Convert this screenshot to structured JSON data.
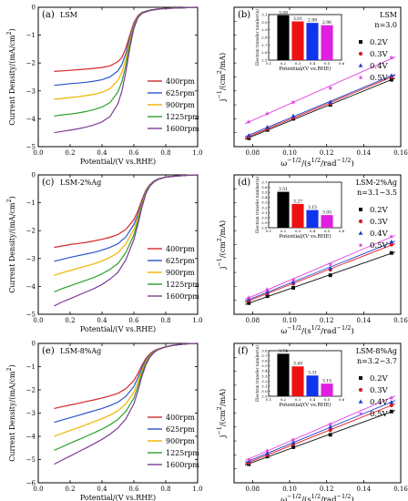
{
  "figure": {
    "title": ""
  },
  "chart_data": [
    {
      "panel": "(a)",
      "type": "line",
      "name": "LSM",
      "xlabel": "Potential/(V vs.RHE)",
      "ylabel": "Current Density/(mA/cm²)",
      "xlim": [
        0.0,
        1.0
      ],
      "ylim": [
        -5,
        0
      ],
      "xticks": [
        "0.0",
        "0.2",
        "0.4",
        "0.6",
        "0.8",
        "1.0"
      ],
      "yticks": [
        "0",
        "-1",
        "-2",
        "-3",
        "-4",
        "-5"
      ],
      "legend": "bottom-right",
      "x": [
        0.1,
        0.15,
        0.2,
        0.25,
        0.3,
        0.35,
        0.4,
        0.45,
        0.5,
        0.525,
        0.55,
        0.575,
        0.6,
        0.625,
        0.65,
        0.7,
        0.75,
        0.8,
        0.85,
        0.9,
        0.95,
        1.0
      ],
      "series": [
        {
          "name": "400rpm",
          "color": "#d62728",
          "values": [
            -2.3,
            -2.28,
            -2.26,
            -2.24,
            -2.22,
            -2.19,
            -2.16,
            -2.1,
            -1.95,
            -1.8,
            -1.45,
            -1.0,
            -0.55,
            -0.3,
            -0.18,
            -0.1,
            -0.06,
            -0.04,
            -0.03,
            -0.02,
            -0.01,
            0
          ]
        },
        {
          "name": "625rpm",
          "color": "#2a55c8",
          "values": [
            -2.8,
            -2.77,
            -2.74,
            -2.72,
            -2.69,
            -2.65,
            -2.6,
            -2.5,
            -2.28,
            -2.05,
            -1.65,
            -1.1,
            -0.6,
            -0.32,
            -0.19,
            -0.1,
            -0.06,
            -0.04,
            -0.03,
            -0.02,
            -0.01,
            0
          ]
        },
        {
          "name": "900rpm",
          "color": "#f0b400",
          "values": [
            -3.3,
            -3.27,
            -3.24,
            -3.21,
            -3.17,
            -3.12,
            -3.05,
            -2.92,
            -2.62,
            -2.32,
            -1.85,
            -1.2,
            -0.65,
            -0.34,
            -0.2,
            -0.11,
            -0.07,
            -0.04,
            -0.03,
            -0.02,
            -0.01,
            0
          ]
        },
        {
          "name": "1225rpm",
          "color": "#2ca02c",
          "values": [
            -3.9,
            -3.86,
            -3.83,
            -3.79,
            -3.74,
            -3.67,
            -3.58,
            -3.42,
            -3.04,
            -2.66,
            -2.07,
            -1.32,
            -0.7,
            -0.36,
            -0.21,
            -0.11,
            -0.07,
            -0.04,
            -0.03,
            -0.02,
            -0.01,
            0
          ]
        },
        {
          "name": "1600rpm",
          "color": "#7e3c98",
          "values": [
            -4.5,
            -4.45,
            -4.41,
            -4.36,
            -4.3,
            -4.22,
            -4.11,
            -3.92,
            -3.46,
            -3.0,
            -2.3,
            -1.45,
            -0.76,
            -0.38,
            -0.22,
            -0.12,
            -0.07,
            -0.04,
            -0.03,
            -0.02,
            -0.01,
            0
          ]
        }
      ]
    },
    {
      "panel": "(b)",
      "type": "scatter",
      "name": "LSM",
      "n_label": "n=3.0",
      "xlabel": "ω^-1/2/(s^1/2/rad^-1/2)",
      "ylabel": "j^-1/(cm²/mA)",
      "xlim": [
        0.07,
        0.16
      ],
      "ylim": [
        0.2,
        0.7
      ],
      "xticks": [
        "0.08",
        "0.10",
        "0.12",
        "0.14",
        "0.16"
      ],
      "legend": "center-right",
      "x": [
        0.078,
        0.088,
        0.102,
        0.122,
        0.155
      ],
      "series": [
        {
          "name": "0.2V",
          "color": "#111111",
          "marker": "square",
          "values": [
            0.23,
            0.26,
            0.3,
            0.35,
            0.44
          ]
        },
        {
          "name": "0.3V",
          "color": "#e41a1c",
          "marker": "circle",
          "values": [
            0.235,
            0.265,
            0.305,
            0.355,
            0.45
          ]
        },
        {
          "name": "0.4V",
          "color": "#2040d0",
          "marker": "triangle",
          "values": [
            0.24,
            0.27,
            0.31,
            0.36,
            0.455
          ]
        },
        {
          "name": "0.5V",
          "color": "#e040e0",
          "marker": "star",
          "values": [
            0.29,
            0.32,
            0.36,
            0.41,
            0.52
          ]
        }
      ],
      "inset": {
        "ylabel": "Electron transfer number(n)",
        "xlabel": "Potential/(V vs.RHE)",
        "ylim": [
          2.5,
          3.1
        ],
        "yticks": [
          "3.1",
          "3.0",
          "2.9",
          "2.8",
          "2.7",
          "2.6",
          "2.5"
        ],
        "xticks": [
          "0.1",
          "0.2",
          "0.3",
          "0.4",
          "0.5",
          "0.6"
        ],
        "bars": [
          {
            "x": 0.2,
            "value": 3.09,
            "label": "3.09",
            "color": "#000000"
          },
          {
            "x": 0.3,
            "value": 3.01,
            "label": "3.01",
            "color": "#ee1111"
          },
          {
            "x": 0.4,
            "value": 2.99,
            "label": "2.99",
            "color": "#1133ee"
          },
          {
            "x": 0.5,
            "value": 2.96,
            "label": "2.96",
            "color": "#e020e0"
          }
        ]
      }
    },
    {
      "panel": "(c)",
      "type": "line",
      "name": "LSM-2%Ag",
      "xlabel": "Potential/(V vs.RHE)",
      "ylabel": "Current Density/(mA/cm²)",
      "xlim": [
        0.0,
        1.0
      ],
      "ylim": [
        -5,
        0
      ],
      "xticks": [
        "0.0",
        "0.2",
        "0.4",
        "0.6",
        "0.8",
        "1.0"
      ],
      "yticks": [
        "0",
        "-1",
        "-2",
        "-3",
        "-4",
        "-5"
      ],
      "legend": "bottom-right",
      "x": [
        0.1,
        0.15,
        0.2,
        0.25,
        0.3,
        0.35,
        0.4,
        0.45,
        0.5,
        0.55,
        0.6,
        0.625,
        0.65,
        0.675,
        0.7,
        0.725,
        0.75,
        0.8,
        0.85,
        0.9,
        0.95,
        1.0
      ],
      "series": [
        {
          "name": "400rpm",
          "color": "#d62728",
          "values": [
            -2.6,
            -2.55,
            -2.5,
            -2.46,
            -2.42,
            -2.37,
            -2.31,
            -2.24,
            -2.14,
            -1.95,
            -1.6,
            -1.3,
            -0.9,
            -0.55,
            -0.35,
            -0.22,
            -0.15,
            -0.08,
            -0.05,
            -0.03,
            -0.01,
            0
          ]
        },
        {
          "name": "625rpm",
          "color": "#2a55c8",
          "values": [
            -3.1,
            -3.03,
            -2.96,
            -2.9,
            -2.84,
            -2.78,
            -2.7,
            -2.6,
            -2.47,
            -2.22,
            -1.78,
            -1.42,
            -0.97,
            -0.58,
            -0.36,
            -0.23,
            -0.15,
            -0.08,
            -0.05,
            -0.03,
            -0.01,
            0
          ]
        },
        {
          "name": "900rpm",
          "color": "#f0b400",
          "values": [
            -3.6,
            -3.51,
            -3.43,
            -3.35,
            -3.27,
            -3.19,
            -3.09,
            -2.96,
            -2.79,
            -2.47,
            -1.95,
            -1.53,
            -1.03,
            -0.61,
            -0.38,
            -0.24,
            -0.16,
            -0.08,
            -0.05,
            -0.03,
            -0.01,
            0
          ]
        },
        {
          "name": "1225rpm",
          "color": "#2ca02c",
          "values": [
            -4.2,
            -4.08,
            -3.98,
            -3.88,
            -3.78,
            -3.68,
            -3.55,
            -3.39,
            -3.18,
            -2.78,
            -2.15,
            -1.66,
            -1.1,
            -0.65,
            -0.39,
            -0.25,
            -0.16,
            -0.08,
            -0.05,
            -0.03,
            -0.01,
            0
          ]
        },
        {
          "name": "1600rpm",
          "color": "#7e3c98",
          "values": [
            -4.7,
            -4.56,
            -4.44,
            -4.32,
            -4.2,
            -4.08,
            -3.93,
            -3.74,
            -3.5,
            -3.04,
            -2.32,
            -1.78,
            -1.17,
            -0.68,
            -0.41,
            -0.26,
            -0.17,
            -0.08,
            -0.05,
            -0.03,
            -0.01,
            0
          ]
        }
      ]
    },
    {
      "panel": "(d)",
      "type": "scatter",
      "name": "LSM-2%Ag",
      "n_label": "n=3.1~3.5",
      "xlabel": "ω^-1/2/(s^1/2/rad^-1/2)",
      "ylabel": "j^-1/(cm²/mA)",
      "xlim": [
        0.07,
        0.16
      ],
      "ylim": [
        0.2,
        0.7
      ],
      "xticks": [
        "0.08",
        "0.10",
        "0.12",
        "0.14",
        "0.16"
      ],
      "legend": "center-right",
      "x": [
        0.078,
        0.088,
        0.102,
        0.122,
        0.155
      ],
      "series": [
        {
          "name": "0.2V",
          "color": "#111111",
          "marker": "square",
          "values": [
            0.24,
            0.265,
            0.295,
            0.34,
            0.42
          ]
        },
        {
          "name": "0.3V",
          "color": "#e41a1c",
          "marker": "circle",
          "values": [
            0.25,
            0.275,
            0.31,
            0.36,
            0.45
          ]
        },
        {
          "name": "0.4V",
          "color": "#2040d0",
          "marker": "triangle",
          "values": [
            0.255,
            0.28,
            0.315,
            0.365,
            0.46
          ]
        },
        {
          "name": "0.5V",
          "color": "#e040e0",
          "marker": "star",
          "values": [
            0.26,
            0.29,
            0.325,
            0.38,
            0.48
          ]
        }
      ],
      "inset": {
        "ylabel": "Electron transfer number(n)",
        "xlabel": "Potential/(V vs.RHE)",
        "ylim": [
          2.8,
          3.7
        ],
        "yticks": [
          "3.7",
          "3.6",
          "3.5",
          "3.4",
          "3.3",
          "3.2",
          "3.1",
          "3.0",
          "2.9",
          "2.8"
        ],
        "xticks": [
          "0.1",
          "0.2",
          "0.3",
          "0.4",
          "0.5",
          "0.6"
        ],
        "bars": [
          {
            "x": 0.2,
            "value": 3.51,
            "label": "3.51",
            "color": "#000000"
          },
          {
            "x": 0.3,
            "value": 3.27,
            "label": "3.27",
            "color": "#ee1111"
          },
          {
            "x": 0.4,
            "value": 3.15,
            "label": "3.15",
            "color": "#1133ee"
          },
          {
            "x": 0.5,
            "value": 3.05,
            "label": "3.05",
            "color": "#e020e0"
          }
        ]
      }
    },
    {
      "panel": "(e)",
      "type": "line",
      "name": "LSM-8%Ag",
      "xlabel": "Potential/(V vs.RHE)",
      "ylabel": "Current Density/(mA/cm²)",
      "xlim": [
        0.0,
        1.0
      ],
      "ylim": [
        -6,
        0
      ],
      "xticks": [
        "0.0",
        "0.2",
        "0.4",
        "0.6",
        "0.8",
        "1.0"
      ],
      "yticks": [
        "0",
        "-1",
        "-2",
        "-3",
        "-4",
        "-5",
        "-6"
      ],
      "legend": "bottom-right",
      "x": [
        0.1,
        0.15,
        0.2,
        0.25,
        0.3,
        0.35,
        0.4,
        0.45,
        0.5,
        0.55,
        0.6,
        0.625,
        0.65,
        0.675,
        0.7,
        0.725,
        0.75,
        0.8,
        0.85,
        0.9,
        0.95,
        1.0
      ],
      "series": [
        {
          "name": "400rpm",
          "color": "#d62728",
          "values": [
            -2.8,
            -2.72,
            -2.65,
            -2.58,
            -2.5,
            -2.43,
            -2.35,
            -2.26,
            -2.15,
            -1.95,
            -1.6,
            -1.3,
            -0.95,
            -0.65,
            -0.45,
            -0.32,
            -0.24,
            -0.14,
            -0.08,
            -0.04,
            -0.01,
            0
          ]
        },
        {
          "name": "625rpm",
          "color": "#2a55c8",
          "values": [
            -3.4,
            -3.3,
            -3.2,
            -3.1,
            -3.0,
            -2.9,
            -2.8,
            -2.68,
            -2.53,
            -2.28,
            -1.85,
            -1.48,
            -1.06,
            -0.72,
            -0.49,
            -0.34,
            -0.25,
            -0.14,
            -0.08,
            -0.04,
            -0.01,
            0
          ]
        },
        {
          "name": "900rpm",
          "color": "#f0b400",
          "values": [
            -4.0,
            -3.87,
            -3.75,
            -3.63,
            -3.5,
            -3.37,
            -3.24,
            -3.09,
            -2.9,
            -2.6,
            -2.1,
            -1.67,
            -1.18,
            -0.78,
            -0.52,
            -0.36,
            -0.26,
            -0.14,
            -0.08,
            -0.04,
            -0.01,
            0
          ]
        },
        {
          "name": "1225rpm",
          "color": "#2ca02c",
          "values": [
            -4.6,
            -4.45,
            -4.3,
            -4.15,
            -4.0,
            -3.85,
            -3.69,
            -3.5,
            -3.27,
            -2.92,
            -2.35,
            -1.86,
            -1.3,
            -0.85,
            -0.56,
            -0.38,
            -0.27,
            -0.15,
            -0.08,
            -0.04,
            -0.01,
            0
          ]
        },
        {
          "name": "1600rpm",
          "color": "#7e3c98",
          "values": [
            -5.2,
            -5.02,
            -4.85,
            -4.67,
            -4.5,
            -4.32,
            -4.13,
            -3.91,
            -3.64,
            -3.24,
            -2.6,
            -2.05,
            -1.42,
            -0.92,
            -0.6,
            -0.4,
            -0.28,
            -0.15,
            -0.08,
            -0.04,
            -0.01,
            0
          ]
        }
      ]
    },
    {
      "panel": "(f)",
      "type": "scatter",
      "name": "LSM-8%Ag",
      "n_label": "n=3.2~3.7",
      "xlabel": "ω^-1/2/(s^1/2/rad^-1/2)",
      "ylabel": "j^-1/(cm²/mA)",
      "xlim": [
        0.07,
        0.16
      ],
      "ylim": [
        0.15,
        0.6
      ],
      "xticks": [
        "0.08",
        "0.10",
        "0.12",
        "0.14",
        "0.16"
      ],
      "legend": "center-right",
      "x": [
        0.078,
        0.088,
        0.102,
        0.122,
        0.155
      ],
      "series": [
        {
          "name": "0.2V",
          "color": "#111111",
          "marker": "square",
          "values": [
            0.21,
            0.235,
            0.265,
            0.305,
            0.38
          ]
        },
        {
          "name": "0.3V",
          "color": "#e41a1c",
          "marker": "circle",
          "values": [
            0.215,
            0.24,
            0.275,
            0.32,
            0.4
          ]
        },
        {
          "name": "0.4V",
          "color": "#2040d0",
          "marker": "triangle",
          "values": [
            0.22,
            0.245,
            0.28,
            0.33,
            0.41
          ]
        },
        {
          "name": "0.5V",
          "color": "#e040e0",
          "marker": "star",
          "values": [
            0.225,
            0.255,
            0.29,
            0.34,
            0.425
          ]
        }
      ],
      "inset": {
        "ylabel": "Electron transfer number(n)",
        "xlabel": "Potential/(V vs.RHE)",
        "ylim": [
          2.9,
          3.8
        ],
        "yticks": [
          "3.8",
          "3.7",
          "3.6",
          "3.5",
          "3.4",
          "3.3",
          "3.2",
          "3.1",
          "3.0",
          "2.9"
        ],
        "xticks": [
          "0.1",
          "0.2",
          "0.3",
          "0.4",
          "0.5",
          "0.6"
        ],
        "bars": [
          {
            "x": 0.2,
            "value": 3.74,
            "label": "3.74",
            "color": "#000000"
          },
          {
            "x": 0.3,
            "value": 3.49,
            "label": "3.49",
            "color": "#ee1111"
          },
          {
            "x": 0.4,
            "value": 3.31,
            "label": "3.31",
            "color": "#1133ee"
          },
          {
            "x": 0.5,
            "value": 3.15,
            "label": "3.15",
            "color": "#e020e0"
          }
        ]
      }
    }
  ]
}
